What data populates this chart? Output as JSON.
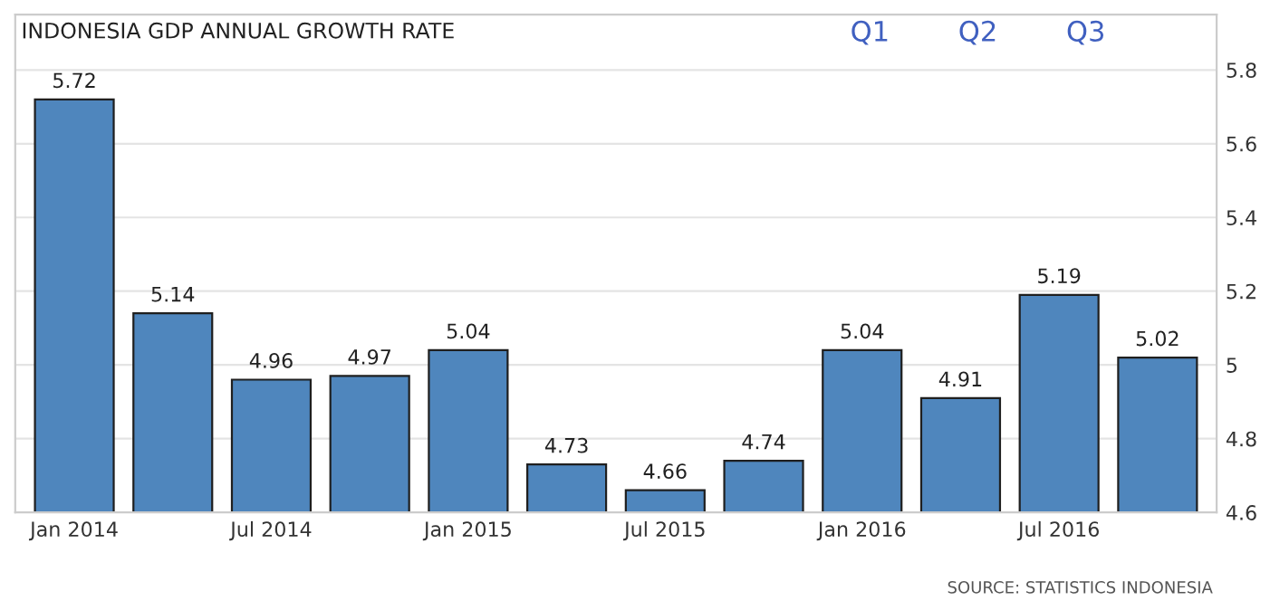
{
  "chart_data": {
    "type": "bar",
    "title": "INDONESIA GDP ANNUAL GROWTH RATE",
    "categories": [
      "Jan 2014",
      null,
      "Jul 2014",
      null,
      "Jan 2015",
      null,
      "Jul 2015",
      null,
      "Jan 2016",
      null,
      "Jul 2016",
      null
    ],
    "values": [
      5.72,
      5.14,
      4.96,
      4.97,
      5.04,
      4.73,
      4.66,
      4.74,
      5.04,
      4.91,
      5.19,
      5.02
    ],
    "color": "#4f86bd",
    "ylim": [
      4.6,
      5.95
    ],
    "yticks": [
      4.6,
      4.8,
      5,
      5.2,
      5.4,
      5.6,
      5.8
    ],
    "grid": "y",
    "data_labels": true,
    "annotations": [
      "Q1",
      "Q2",
      "Q3",
      "SOURCE: STATISTICS INDONESIA"
    ]
  }
}
